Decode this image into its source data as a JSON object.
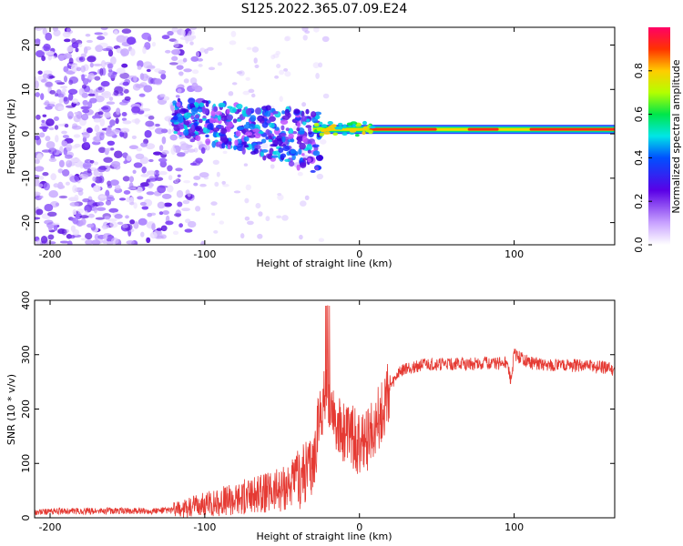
{
  "title": "S125.2022.365.07.09.E24",
  "chart_data": [
    {
      "type": "heatmap",
      "name": "spectrogram",
      "xlabel": "Height of straight line (km)",
      "ylabel": "Frequency (Hz)",
      "xlim": [
        -210,
        165
      ],
      "ylim": [
        -25,
        24
      ],
      "xticks": [
        -200,
        -100,
        0,
        100
      ],
      "yticks": [
        -20,
        -10,
        0,
        10,
        20
      ],
      "colorbar": {
        "label": "Normalized spectral amplitude",
        "range": [
          0,
          1
        ],
        "ticks": [
          0.0,
          0.2,
          0.4,
          0.6,
          0.8
        ]
      },
      "description_series": [
        {
          "name": "noise_band",
          "x_range": [
            -210,
            -120
          ],
          "freq_range": [
            -25,
            24
          ],
          "amplitude": 0.15
        },
        {
          "name": "transition_band",
          "x_range": [
            -120,
            -25
          ],
          "freq_center_start": 4,
          "freq_center_end": -2,
          "amplitude": 0.25
        },
        {
          "name": "signal_line",
          "x_range": [
            -30,
            165
          ],
          "freq": 1,
          "amplitude": 0.9
        }
      ]
    },
    {
      "type": "line",
      "name": "snr",
      "xlabel": "Height of straight line (km)",
      "ylabel": "SNR (10 * v/v)",
      "xlim": [
        -210,
        165
      ],
      "ylim": [
        0,
        400
      ],
      "xticks": [
        -200,
        -100,
        0,
        100
      ],
      "yticks": [
        0,
        100,
        200,
        300,
        400
      ],
      "color": "#e53a33",
      "x": [
        -210,
        -200,
        -180,
        -160,
        -140,
        -120,
        -110,
        -100,
        -90,
        -80,
        -70,
        -60,
        -50,
        -40,
        -30,
        -25,
        -20,
        -15,
        -10,
        -5,
        0,
        5,
        10,
        15,
        20,
        25,
        30,
        40,
        50,
        60,
        70,
        80,
        90,
        95,
        98,
        100,
        110,
        120,
        130,
        140,
        150,
        160,
        165
      ],
      "y": [
        10,
        12,
        12,
        13,
        12,
        14,
        18,
        25,
        30,
        35,
        40,
        45,
        55,
        70,
        100,
        200,
        230,
        180,
        150,
        150,
        130,
        140,
        170,
        200,
        240,
        265,
        275,
        280,
        282,
        283,
        282,
        285,
        284,
        286,
        250,
        300,
        285,
        282,
        281,
        280,
        278,
        276,
        270
      ]
    }
  ]
}
